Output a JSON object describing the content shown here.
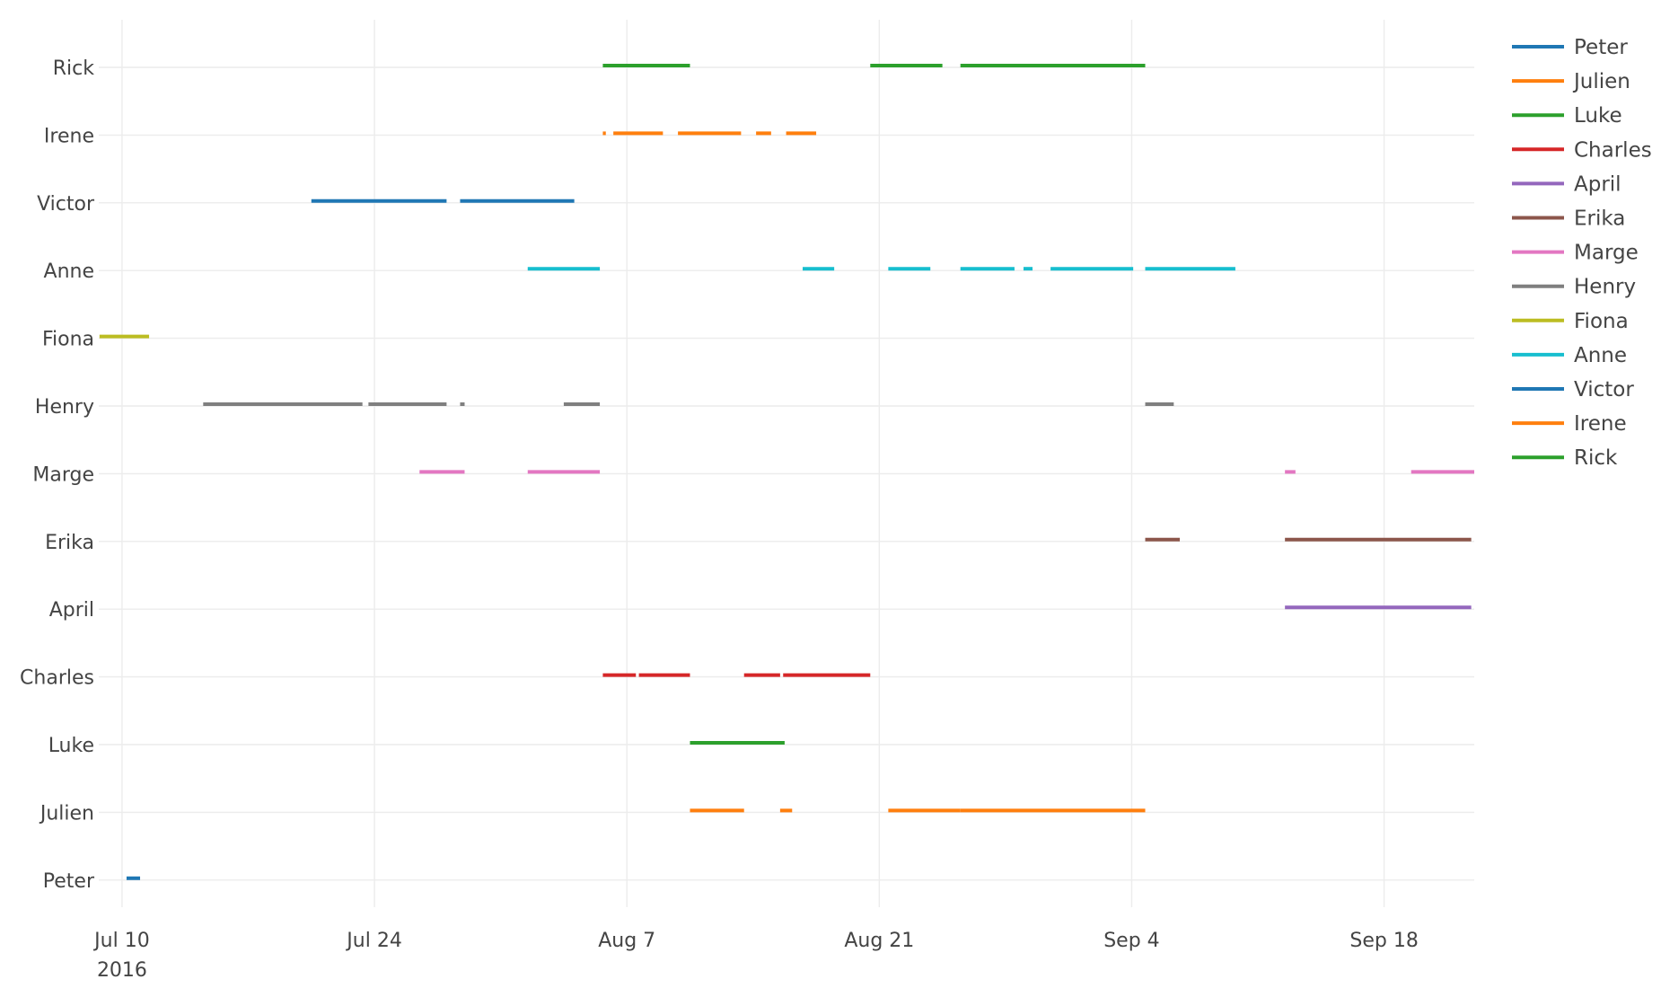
{
  "chart_data": {
    "type": "timeline",
    "x_axis": {
      "type": "date",
      "range": [
        "2016-07-08T17:00",
        "2016-09-23T00:00"
      ],
      "ticks": [
        {
          "date": "2016-07-10",
          "label": "Jul 10",
          "sublabel": "2016"
        },
        {
          "date": "2016-07-24",
          "label": "Jul 24"
        },
        {
          "date": "2016-08-07",
          "label": "Aug 7"
        },
        {
          "date": "2016-08-21",
          "label": "Aug 21"
        },
        {
          "date": "2016-09-04",
          "label": "Sep 4"
        },
        {
          "date": "2016-09-18",
          "label": "Sep 18"
        }
      ],
      "grid": true
    },
    "y_axis": {
      "type": "category",
      "categories": [
        "Peter",
        "Julien",
        "Luke",
        "Charles",
        "April",
        "Erika",
        "Marge",
        "Henry",
        "Fiona",
        "Anne",
        "Victor",
        "Irene",
        "Rick"
      ],
      "grid": true
    },
    "legend": {
      "placement": "top-right"
    },
    "series": [
      {
        "name": "Peter",
        "color": "#1f77b4",
        "category": "Peter",
        "segments": [
          [
            "2016-07-10T06:00",
            "2016-07-11T00:00"
          ]
        ]
      },
      {
        "name": "Julien",
        "color": "#ff7f0e",
        "category": "Julien",
        "segments": [
          [
            "2016-08-10T12:00",
            "2016-08-13T12:00"
          ],
          [
            "2016-08-15T12:00",
            "2016-08-16T04:00"
          ],
          [
            "2016-08-21T12:00",
            "2016-08-25T12:00"
          ],
          [
            "2016-08-25T12:00",
            "2016-09-04T18:00"
          ]
        ]
      },
      {
        "name": "Luke",
        "color": "#2ca02c",
        "category": "Luke",
        "segments": [
          [
            "2016-08-10T12:00",
            "2016-08-15T18:00"
          ]
        ]
      },
      {
        "name": "Charles",
        "color": "#d62728",
        "category": "Charles",
        "segments": [
          [
            "2016-08-05T16:00",
            "2016-08-07T12:00"
          ],
          [
            "2016-08-07T16:00",
            "2016-08-10T12:00"
          ],
          [
            "2016-08-13T12:00",
            "2016-08-15T12:00"
          ],
          [
            "2016-08-15T16:00",
            "2016-08-20T12:00"
          ]
        ]
      },
      {
        "name": "April",
        "color": "#9467bd",
        "category": "April",
        "segments": [
          [
            "2016-09-12T12:00",
            "2016-09-22T20:00"
          ]
        ]
      },
      {
        "name": "Erika",
        "color": "#8c564b",
        "category": "Erika",
        "segments": [
          [
            "2016-09-04T18:00",
            "2016-09-06T16:00"
          ],
          [
            "2016-09-12T12:00",
            "2016-09-22T20:00"
          ]
        ]
      },
      {
        "name": "Marge",
        "color": "#e377c2",
        "category": "Marge",
        "segments": [
          [
            "2016-07-26T12:00",
            "2016-07-29T00:00"
          ],
          [
            "2016-08-01T12:00",
            "2016-08-05T12:00"
          ],
          [
            "2016-09-12T12:00",
            "2016-09-13T02:00"
          ],
          [
            "2016-09-19T12:00",
            "2016-09-23T00:00"
          ]
        ]
      },
      {
        "name": "Henry",
        "color": "#7f7f7f",
        "category": "Henry",
        "segments": [
          [
            "2016-07-14T12:00",
            "2016-07-23T08:00"
          ],
          [
            "2016-07-23T16:00",
            "2016-07-28T00:00"
          ],
          [
            "2016-07-28T18:00",
            "2016-07-29T00:00"
          ],
          [
            "2016-08-03T12:00",
            "2016-08-05T12:00"
          ],
          [
            "2016-09-04T18:00",
            "2016-09-06T08:00"
          ]
        ]
      },
      {
        "name": "Fiona",
        "color": "#bcbd22",
        "category": "Fiona",
        "segments": [
          [
            "2016-07-08T18:00",
            "2016-07-11T12:00"
          ]
        ]
      },
      {
        "name": "Anne",
        "color": "#17becf",
        "category": "Anne",
        "segments": [
          [
            "2016-08-01T12:00",
            "2016-08-05T12:00"
          ],
          [
            "2016-08-16T18:00",
            "2016-08-18T12:00"
          ],
          [
            "2016-08-21T12:00",
            "2016-08-23T20:00"
          ],
          [
            "2016-08-25T12:00",
            "2016-08-28T12:00"
          ],
          [
            "2016-08-29T00:00",
            "2016-08-29T12:00"
          ],
          [
            "2016-08-30T12:00",
            "2016-09-04T02:00"
          ],
          [
            "2016-09-04T18:00",
            "2016-09-09T18:00"
          ]
        ]
      },
      {
        "name": "Victor",
        "color": "#1f77b4",
        "category": "Victor",
        "segments": [
          [
            "2016-07-20T12:00",
            "2016-07-28T00:00"
          ],
          [
            "2016-07-28T18:00",
            "2016-08-04T02:00"
          ]
        ]
      },
      {
        "name": "Irene",
        "color": "#ff7f0e",
        "category": "Irene",
        "segments": [
          [
            "2016-08-05T16:00",
            "2016-08-05T20:00"
          ],
          [
            "2016-08-06T06:00",
            "2016-08-09T00:00"
          ],
          [
            "2016-08-09T20:00",
            "2016-08-13T08:00"
          ],
          [
            "2016-08-14T04:00",
            "2016-08-15T00:00"
          ],
          [
            "2016-08-15T20:00",
            "2016-08-17T12:00"
          ]
        ]
      },
      {
        "name": "Rick",
        "color": "#2ca02c",
        "category": "Rick",
        "segments": [
          [
            "2016-08-05T16:00",
            "2016-08-10T12:00"
          ],
          [
            "2016-08-20T12:00",
            "2016-08-24T12:00"
          ],
          [
            "2016-08-25T12:00",
            "2016-09-04T18:00"
          ]
        ]
      }
    ]
  }
}
